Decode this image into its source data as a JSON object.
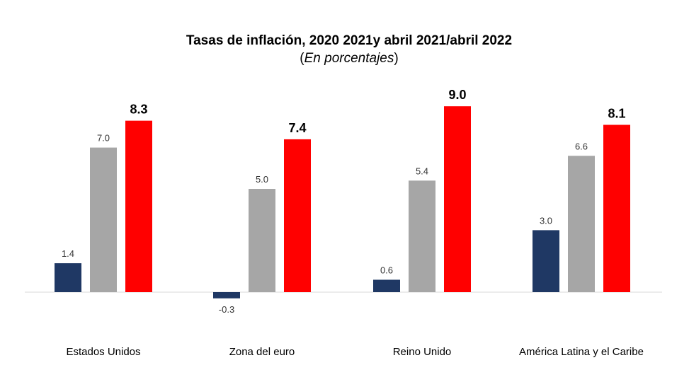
{
  "chart_data": {
    "type": "bar",
    "title": "Tasas de inflación, 2020 2021y abril 2021/abril 2022",
    "subtitle_open": "(",
    "subtitle_italic": "En porcentajes",
    "subtitle_close": ")",
    "categories": [
      "Estados Unidos",
      "Zona del euro",
      "Reino Unido",
      "América Latina y el Caribe"
    ],
    "series": [
      {
        "color": "#1F3864",
        "values": [
          1.4,
          -0.3,
          0.6,
          3.0
        ],
        "labels": [
          "1.4",
          "-0.3",
          "0.6",
          "3.0"
        ]
      },
      {
        "color": "#A6A6A6",
        "values": [
          7.0,
          5.0,
          5.4,
          6.6
        ],
        "labels": [
          "7.0",
          "5.0",
          "5.4",
          "6.6"
        ]
      },
      {
        "color": "#FF0000",
        "values": [
          8.3,
          7.4,
          9.0,
          8.1
        ],
        "labels": [
          "8.3",
          "7.4",
          "9.0",
          "8.1"
        ],
        "bold_labels": true
      }
    ],
    "ylim": [
      -0.3,
      9.0
    ],
    "grid": false,
    "axis_line_color": "#D9D9D9"
  }
}
